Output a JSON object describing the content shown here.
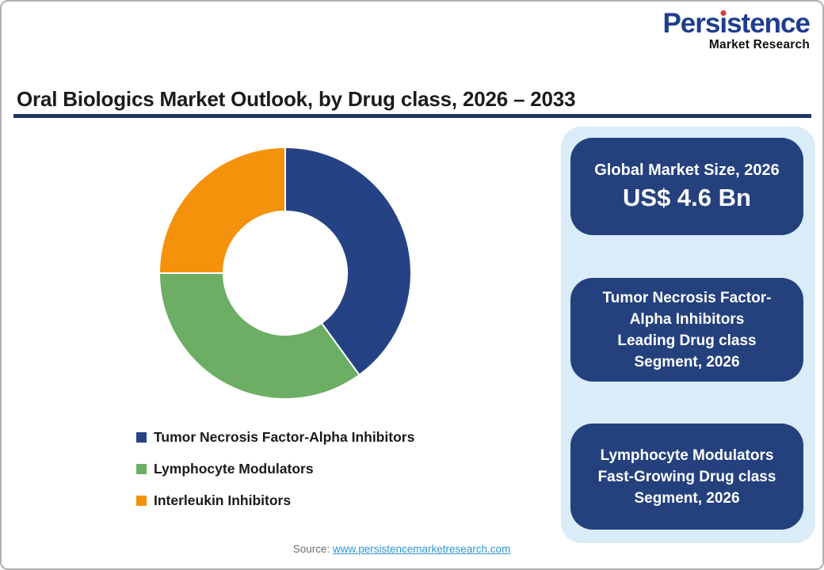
{
  "brand": {
    "name": "Persistence",
    "tagline": "Market Research",
    "name_color": "#1E3D8F",
    "dot_color": "#D8383C",
    "tagline_color": "#111111"
  },
  "header": {
    "title": "Oral Biologics Market Outlook, by Drug class, 2026 – 2033",
    "rule_color": "#1F3864"
  },
  "chart_data": {
    "type": "pie",
    "subtype": "donut",
    "title": "Oral Biologics Market Outlook, by Drug class, 2026 – 2033",
    "categories": [
      "Tumor Necrosis Factor-Alpha Inhibitors",
      "Lymphocyte Modulators",
      "Interleukin Inhibitors"
    ],
    "values": [
      40,
      35,
      25
    ],
    "value_unit": "percent share (estimated from arc angles; no data labels shown)",
    "colors": [
      "#254384",
      "#6CAE63",
      "#F5920B"
    ],
    "start_angle_deg": 0,
    "direction": "clockwise",
    "inner_radius_ratio": 0.49,
    "slice_gap_color": "#ffffff",
    "legend_position": "bottom-left"
  },
  "panel": {
    "background": "#D9ECF8",
    "card_background": "#24417E",
    "cards": [
      {
        "lines": [
          "Global Market Size, 2026"
        ],
        "value": "US$ 4.6 Bn"
      },
      {
        "lines": [
          "Tumor Necrosis Factor-",
          "Alpha Inhibitors",
          "Leading Drug class",
          "Segment, 2026"
        ]
      },
      {
        "lines": [
          "Lymphocyte Modulators",
          "Fast-Growing Drug class",
          "Segment, 2026"
        ]
      }
    ]
  },
  "footer": {
    "source_label": "Source:",
    "source_link": "www.persistencemarketresearch.com",
    "link_color": "#2E96D3"
  }
}
